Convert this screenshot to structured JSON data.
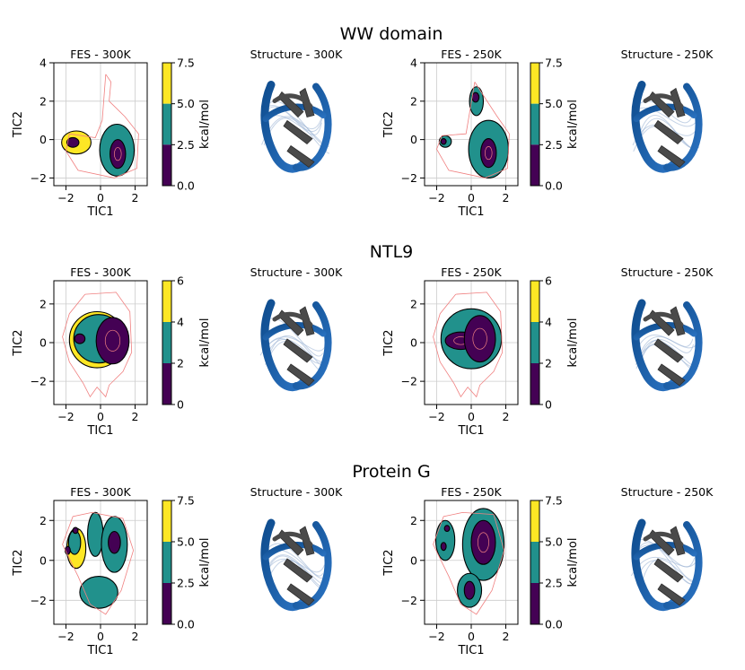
{
  "colors": {
    "low": "#440154",
    "mid": "#21918c",
    "high": "#fde725",
    "contour": "#000000",
    "reference": "#f08080",
    "protein_blue": "#1f5fa8",
    "protein_gray": "#4a4a4a"
  },
  "rows": [
    {
      "title": "WW domain",
      "fes_300": {
        "title": "FES - 300K",
        "xlabel": "TIC1",
        "ylabel": "TIC2",
        "xticks": [
          -2,
          0,
          2
        ],
        "yticks": [
          -2,
          0,
          2,
          4
        ],
        "xlim": [
          -2.7,
          2.7
        ],
        "ylim": [
          -2.4,
          4.0
        ]
      },
      "structure_300": {
        "title": "Structure - 300K"
      },
      "fes_250": {
        "title": "FES - 250K",
        "xlabel": "TIC1",
        "ylabel": "TIC2",
        "xticks": [
          -2,
          0,
          2
        ],
        "yticks": [
          -2,
          0,
          2,
          4
        ],
        "xlim": [
          -2.7,
          2.7
        ],
        "ylim": [
          -2.4,
          4.0
        ]
      },
      "structure_250": {
        "title": "Structure - 250K"
      },
      "colorbar": {
        "label": "kcal/mol",
        "ticks": [
          "0.0",
          "2.5",
          "5.0",
          "7.5"
        ],
        "max": 7.5
      }
    },
    {
      "title": "NTL9",
      "fes_300": {
        "title": "FES - 300K",
        "xlabel": "TIC1",
        "ylabel": "TIC2",
        "xticks": [
          -2,
          0,
          2
        ],
        "yticks": [
          -2,
          0,
          2
        ],
        "xlim": [
          -2.7,
          2.7
        ],
        "ylim": [
          -3.2,
          3.2
        ]
      },
      "structure_300": {
        "title": "Structure - 300K"
      },
      "fes_250": {
        "title": "FES - 250K",
        "xlabel": "TIC1",
        "ylabel": "TIC2",
        "xticks": [
          -2,
          0,
          2
        ],
        "yticks": [
          -2,
          0,
          2
        ],
        "xlim": [
          -2.7,
          2.7
        ],
        "ylim": [
          -3.2,
          3.2
        ]
      },
      "structure_250": {
        "title": "Structure - 250K"
      },
      "colorbar": {
        "label": "kcal/mol",
        "ticks": [
          "0",
          "2",
          "4",
          "6"
        ],
        "max": 6
      }
    },
    {
      "title": "Protein G",
      "fes_300": {
        "title": "FES - 300K",
        "xlabel": "TIC1",
        "ylabel": "TIC2",
        "xticks": [
          -2,
          0,
          2
        ],
        "yticks": [
          -2,
          0,
          2
        ],
        "xlim": [
          -2.7,
          2.7
        ],
        "ylim": [
          -3.2,
          3.0
        ]
      },
      "structure_300": {
        "title": "Structure - 300K"
      },
      "fes_250": {
        "title": "FES - 250K",
        "xlabel": "TIC1",
        "ylabel": "TIC2",
        "xticks": [
          -2,
          0,
          2
        ],
        "yticks": [
          -2,
          0,
          2
        ],
        "xlim": [
          -2.7,
          2.7
        ],
        "ylim": [
          -3.2,
          3.0
        ]
      },
      "structure_250": {
        "title": "Structure - 250K"
      },
      "colorbar": {
        "label": "kcal/mol",
        "ticks": [
          "0.0",
          "2.5",
          "5.0",
          "7.5"
        ],
        "max": 7.5
      }
    }
  ],
  "chart_data": [
    {
      "type": "heatmap",
      "title": "WW domain FES - 300K",
      "xlabel": "TIC1",
      "ylabel": "TIC2",
      "xlim": [
        -2.7,
        2.7
      ],
      "ylim": [
        -2.4,
        4.0
      ],
      "zlabel": "kcal/mol",
      "zlim": [
        0,
        7.5
      ],
      "basins": [
        {
          "cx": -1.4,
          "cy": -0.15,
          "rx": 0.85,
          "ry": 0.6,
          "level": "high"
        },
        {
          "cx": 0.95,
          "cy": -0.55,
          "rx": 1.0,
          "ry": 1.35,
          "level": "mid"
        },
        {
          "cx": -1.6,
          "cy": -0.15,
          "rx": 0.35,
          "ry": 0.25,
          "level": "low"
        },
        {
          "cx": 1.0,
          "cy": -0.75,
          "rx": 0.45,
          "ry": 0.75,
          "level": "low"
        }
      ],
      "reference": [
        [
          0.3,
          3.4
        ],
        [
          0.6,
          3.0
        ],
        [
          0.5,
          2.0
        ],
        [
          1.4,
          1.2
        ],
        [
          2.2,
          0.3
        ],
        [
          2.1,
          -1.5
        ],
        [
          0.8,
          -2.0
        ],
        [
          -1.3,
          -1.6
        ],
        [
          -2.0,
          -0.6
        ],
        [
          -1.8,
          0.3
        ],
        [
          -0.3,
          0.1
        ],
        [
          0.1,
          1.0
        ],
        [
          0.3,
          3.4
        ]
      ]
    },
    {
      "type": "heatmap",
      "title": "WW domain FES - 250K",
      "xlabel": "TIC1",
      "ylabel": "TIC2",
      "xlim": [
        -2.7,
        2.7
      ],
      "ylim": [
        -2.4,
        4.0
      ],
      "zlabel": "kcal/mol",
      "zlim": [
        0,
        7.5
      ],
      "basins": [
        {
          "cx": 0.3,
          "cy": 2.0,
          "rx": 0.4,
          "ry": 0.75,
          "level": "mid"
        },
        {
          "cx": 1.0,
          "cy": -0.5,
          "rx": 1.15,
          "ry": 1.5,
          "level": "mid"
        },
        {
          "cx": -1.5,
          "cy": -0.1,
          "rx": 0.35,
          "ry": 0.3,
          "level": "mid"
        },
        {
          "cx": 0.25,
          "cy": 2.2,
          "rx": 0.2,
          "ry": 0.25,
          "level": "low"
        },
        {
          "cx": 1.0,
          "cy": -0.7,
          "rx": 0.45,
          "ry": 0.75,
          "level": "low"
        },
        {
          "cx": -1.6,
          "cy": -0.1,
          "rx": 0.15,
          "ry": 0.15,
          "level": "low"
        }
      ],
      "reference": [
        [
          0.2,
          3.0
        ],
        [
          0.7,
          2.3
        ],
        [
          1.5,
          1.2
        ],
        [
          2.2,
          0.3
        ],
        [
          2.1,
          -1.5
        ],
        [
          0.8,
          -2.0
        ],
        [
          -1.3,
          -1.6
        ],
        [
          -2.0,
          -0.5
        ],
        [
          -1.7,
          0.2
        ],
        [
          -0.3,
          0.3
        ],
        [
          0.2,
          3.0
        ]
      ]
    },
    {
      "type": "heatmap",
      "title": "NTL9 FES - 300K",
      "xlabel": "TIC1",
      "ylabel": "TIC2",
      "xlim": [
        -2.7,
        2.7
      ],
      "ylim": [
        -3.2,
        3.2
      ],
      "zlabel": "kcal/mol",
      "zlim": [
        0,
        6
      ],
      "basins": [
        {
          "cx": -0.2,
          "cy": 0.15,
          "rx": 1.6,
          "ry": 1.45,
          "level": "high"
        },
        {
          "cx": -0.1,
          "cy": 0.2,
          "rx": 1.45,
          "ry": 1.25,
          "level": "mid"
        },
        {
          "cx": 0.7,
          "cy": 0.1,
          "rx": 0.95,
          "ry": 1.2,
          "level": "low"
        },
        {
          "cx": -1.2,
          "cy": 0.2,
          "rx": 0.3,
          "ry": 0.25,
          "level": "low"
        }
      ],
      "reference": [
        [
          -0.9,
          2.5
        ],
        [
          0.9,
          2.6
        ],
        [
          1.7,
          1.6
        ],
        [
          1.8,
          -0.5
        ],
        [
          1.3,
          -1.5
        ],
        [
          0.5,
          -2.2
        ],
        [
          0.3,
          -2.8
        ],
        [
          -0.2,
          -2.3
        ],
        [
          -0.6,
          -2.8
        ],
        [
          -1.0,
          -2.1
        ],
        [
          -1.8,
          -1.0
        ],
        [
          -2.2,
          0.3
        ],
        [
          -1.8,
          1.5
        ],
        [
          -0.9,
          2.5
        ]
      ]
    },
    {
      "type": "heatmap",
      "title": "NTL9 FES - 250K",
      "xlabel": "TIC1",
      "ylabel": "TIC2",
      "xlim": [
        -2.7,
        2.7
      ],
      "ylim": [
        -3.2,
        3.2
      ],
      "zlabel": "kcal/mol",
      "zlim": [
        0,
        6
      ],
      "basins": [
        {
          "cx": 0.0,
          "cy": 0.2,
          "rx": 1.75,
          "ry": 1.55,
          "level": "mid"
        },
        {
          "cx": -0.6,
          "cy": 0.1,
          "rx": 0.9,
          "ry": 0.45,
          "level": "low"
        },
        {
          "cx": 0.5,
          "cy": 0.2,
          "rx": 0.9,
          "ry": 1.2,
          "level": "low"
        }
      ],
      "reference": [
        [
          -0.9,
          2.5
        ],
        [
          0.9,
          2.6
        ],
        [
          1.7,
          1.6
        ],
        [
          1.8,
          -0.5
        ],
        [
          1.3,
          -1.5
        ],
        [
          0.5,
          -2.2
        ],
        [
          0.3,
          -2.8
        ],
        [
          -0.2,
          -2.3
        ],
        [
          -0.6,
          -2.8
        ],
        [
          -1.0,
          -2.1
        ],
        [
          -1.8,
          -1.0
        ],
        [
          -2.2,
          0.3
        ],
        [
          -1.8,
          1.5
        ],
        [
          -0.9,
          2.5
        ]
      ]
    },
    {
      "type": "heatmap",
      "title": "Protein G FES - 300K",
      "xlabel": "TIC1",
      "ylabel": "TIC2",
      "xlim": [
        -2.7,
        2.7
      ],
      "ylim": [
        -3.2,
        3.0
      ],
      "zlabel": "kcal/mol",
      "zlim": [
        0,
        7.5
      ],
      "basins": [
        {
          "cx": -1.4,
          "cy": 0.6,
          "rx": 0.55,
          "ry": 1.0,
          "level": "high"
        },
        {
          "cx": -0.3,
          "cy": 1.3,
          "rx": 0.45,
          "ry": 1.1,
          "level": "mid"
        },
        {
          "cx": 0.8,
          "cy": 0.8,
          "rx": 0.75,
          "ry": 1.4,
          "level": "mid"
        },
        {
          "cx": -0.1,
          "cy": -1.6,
          "rx": 1.1,
          "ry": 0.8,
          "level": "mid"
        },
        {
          "cx": -1.5,
          "cy": 0.9,
          "rx": 0.35,
          "ry": 0.6,
          "level": "mid"
        },
        {
          "cx": 0.8,
          "cy": 0.9,
          "rx": 0.35,
          "ry": 0.55,
          "level": "low"
        },
        {
          "cx": -1.9,
          "cy": 0.5,
          "rx": 0.15,
          "ry": 0.2,
          "level": "low"
        },
        {
          "cx": -1.45,
          "cy": 1.5,
          "rx": 0.15,
          "ry": 0.15,
          "level": "low"
        }
      ],
      "reference": [
        [
          -0.5,
          2.4
        ],
        [
          1.3,
          2.1
        ],
        [
          1.9,
          0.5
        ],
        [
          1.2,
          -1.5
        ],
        [
          0.3,
          -2.7
        ],
        [
          -0.6,
          -2.2
        ],
        [
          -1.3,
          -0.8
        ],
        [
          -2.2,
          0.8
        ],
        [
          -1.6,
          2.2
        ],
        [
          -0.5,
          2.4
        ]
      ]
    },
    {
      "type": "heatmap",
      "title": "Protein G FES - 250K",
      "xlabel": "TIC1",
      "ylabel": "TIC2",
      "xlim": [
        -2.7,
        2.7
      ],
      "ylim": [
        -3.2,
        3.0
      ],
      "zlabel": "kcal/mol",
      "zlim": [
        0,
        7.5
      ],
      "basins": [
        {
          "cx": -1.5,
          "cy": 1.0,
          "rx": 0.55,
          "ry": 1.0,
          "level": "mid"
        },
        {
          "cx": 0.7,
          "cy": 0.8,
          "rx": 1.2,
          "ry": 1.8,
          "level": "mid"
        },
        {
          "cx": -0.1,
          "cy": -1.5,
          "rx": 0.7,
          "ry": 0.85,
          "level": "mid"
        },
        {
          "cx": 0.7,
          "cy": 0.9,
          "rx": 0.7,
          "ry": 1.1,
          "level": "low"
        },
        {
          "cx": -0.1,
          "cy": -1.5,
          "rx": 0.3,
          "ry": 0.45,
          "level": "low"
        },
        {
          "cx": -1.6,
          "cy": 0.7,
          "rx": 0.15,
          "ry": 0.2,
          "level": "low"
        },
        {
          "cx": -1.4,
          "cy": 1.6,
          "rx": 0.15,
          "ry": 0.15,
          "level": "low"
        }
      ],
      "reference": [
        [
          -0.5,
          2.4
        ],
        [
          1.3,
          2.3
        ],
        [
          1.9,
          0.5
        ],
        [
          1.2,
          -1.5
        ],
        [
          0.3,
          -2.7
        ],
        [
          -0.6,
          -2.2
        ],
        [
          -1.3,
          -0.8
        ],
        [
          -2.2,
          0.8
        ],
        [
          -1.6,
          2.2
        ],
        [
          -0.5,
          2.4
        ]
      ]
    }
  ]
}
